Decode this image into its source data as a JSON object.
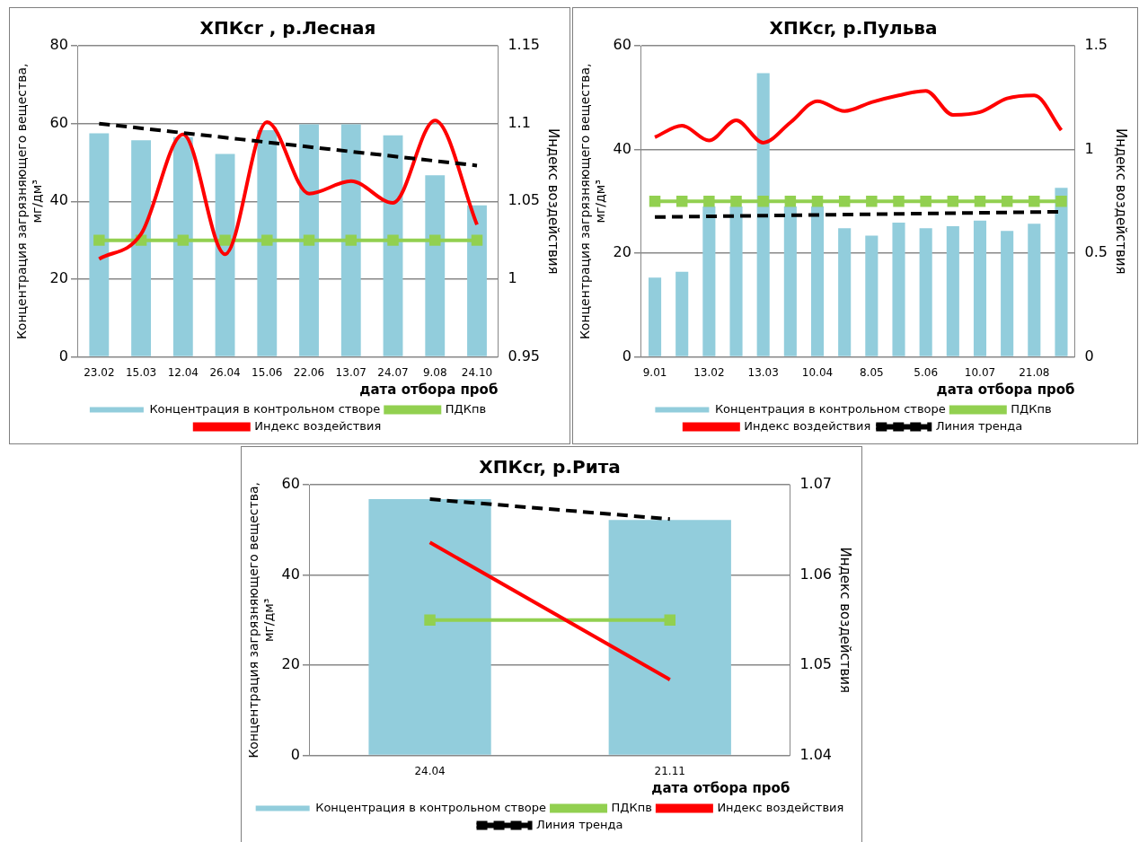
{
  "chart_data": [
    {
      "type": "bar",
      "title": "ХПКcr , р.Лесная",
      "xlabel": "дата отбора проб",
      "ylabel": "Концентрация загрязняющего вещества, мг/дм³",
      "y2label": "Индекс воздействия",
      "categories": [
        "23.02",
        "15.03",
        "12.04",
        "26.04",
        "15.06",
        "22.06",
        "13.07",
        "24.07",
        "9.08",
        "24.10"
      ],
      "ylim": [
        0,
        80
      ],
      "yticks": [
        0,
        20,
        40,
        60,
        80
      ],
      "y2lim": [
        0.95,
        1.15
      ],
      "y2ticks": [
        0.95,
        1,
        1.05,
        1.1,
        1.15
      ],
      "grid": "y",
      "legend": "bottom",
      "series": [
        {
          "name": "Концентрация в контрольном створе",
          "color": "#92cddc",
          "values": [
            57.5,
            55.7,
            56.5,
            52.2,
            58.3,
            59.8,
            59.8,
            57,
            46.7,
            39
          ]
        },
        {
          "type": "line",
          "name": "ПДКпв",
          "color": "#92d050",
          "marker": "square",
          "values": [
            30,
            30,
            30,
            30,
            30,
            30,
            30,
            30,
            30,
            30
          ]
        },
        {
          "type": "line",
          "name": "Индекс воздействия",
          "color": "#ff0000",
          "axis": "y2",
          "values": [
            1.013,
            1.029,
            1.093,
            1.016,
            1.101,
            1.055,
            1.063,
            1.049,
            1.102,
            1.035
          ]
        },
        {
          "type": "line",
          "color": "#000000",
          "axis": "y2",
          "line_style": "dashed",
          "values": [
            1.1,
            null,
            null,
            null,
            null,
            null,
            null,
            null,
            null,
            1.073
          ]
        }
      ]
    },
    {
      "type": "bar",
      "title": "ХПКcr, р.Пульва",
      "xlabel": "дата отбора проб",
      "ylabel": "Концентрация загрязняющего вещества, мг/дм³",
      "y2label": "Индекс воздействия",
      "categories": [
        "9.01",
        null,
        "13.02",
        null,
        "13.03",
        null,
        "10.04",
        null,
        "8.05",
        null,
        "5.06",
        null,
        "10.07",
        null,
        "21.08",
        null
      ],
      "ylim": [
        0,
        60
      ],
      "yticks": [
        0,
        20,
        40,
        60
      ],
      "y2lim": [
        0,
        1.5
      ],
      "y2ticks": [
        0,
        0.5,
        1,
        1.5
      ],
      "grid": "y",
      "legend": "bottom",
      "series": [
        {
          "name": "Концентрация в контрольном створе",
          "color": "#92cddc",
          "values": [
            15.3,
            16.4,
            29,
            29,
            54.7,
            29,
            29,
            24.8,
            23.4,
            25.9,
            24.8,
            25.2,
            26.3,
            24.3,
            25.7,
            32.6
          ]
        },
        {
          "type": "line",
          "name": "ПДКпв",
          "color": "#92d050",
          "marker": "square",
          "values": [
            30,
            30,
            30,
            30,
            30,
            30,
            30,
            30,
            30,
            30,
            30,
            30,
            30,
            30,
            30,
            30
          ]
        },
        {
          "type": "line",
          "name": "Индекс воздействия",
          "color": "#ff0000",
          "axis": "y2",
          "values": [
            1.059,
            1.115,
            1.043,
            1.141,
            1.033,
            1.13,
            1.233,
            1.185,
            1.228,
            1.261,
            1.283,
            1.167,
            1.18,
            1.246,
            1.261,
            1.093
          ]
        },
        {
          "type": "line",
          "name": "Линия тренда",
          "color": "#000000",
          "axis": "y2",
          "line_style": "dashed",
          "values": [
            0.674,
            null,
            null,
            null,
            null,
            null,
            null,
            null,
            null,
            null,
            null,
            null,
            null,
            null,
            null,
            0.7
          ]
        }
      ]
    },
    {
      "type": "bar",
      "title": "ХПКcr, р.Рита",
      "xlabel": "дата отбора проб",
      "ylabel": "Концентрация загрязняющего вещества, мг/дм³",
      "y2label": "Индекс воздействия",
      "categories": [
        "24.04",
        "21.11"
      ],
      "ylim": [
        0,
        60
      ],
      "yticks": [
        0,
        20,
        40,
        60
      ],
      "y2lim": [
        1.04,
        1.07
      ],
      "y2ticks": [
        1.04,
        1.05,
        1.06,
        1.07
      ],
      "grid": "y",
      "legend": "bottom",
      "series": [
        {
          "name": "Концентрация в контрольном створе",
          "color": "#92cddc",
          "values": [
            56.8,
            52.2
          ]
        },
        {
          "type": "line",
          "name": "ПДКпв",
          "color": "#92d050",
          "marker": "square",
          "values": [
            30,
            30
          ]
        },
        {
          "type": "line",
          "name": "Индекс воздействия",
          "color": "#ff0000",
          "axis": "y2",
          "values": [
            1.0636,
            1.0484
          ]
        },
        {
          "type": "line",
          "name": "Линия тренда",
          "color": "#000000",
          "axis": "y2",
          "line_style": "dashed",
          "values": [
            1.0684,
            1.0662
          ]
        }
      ]
    }
  ]
}
